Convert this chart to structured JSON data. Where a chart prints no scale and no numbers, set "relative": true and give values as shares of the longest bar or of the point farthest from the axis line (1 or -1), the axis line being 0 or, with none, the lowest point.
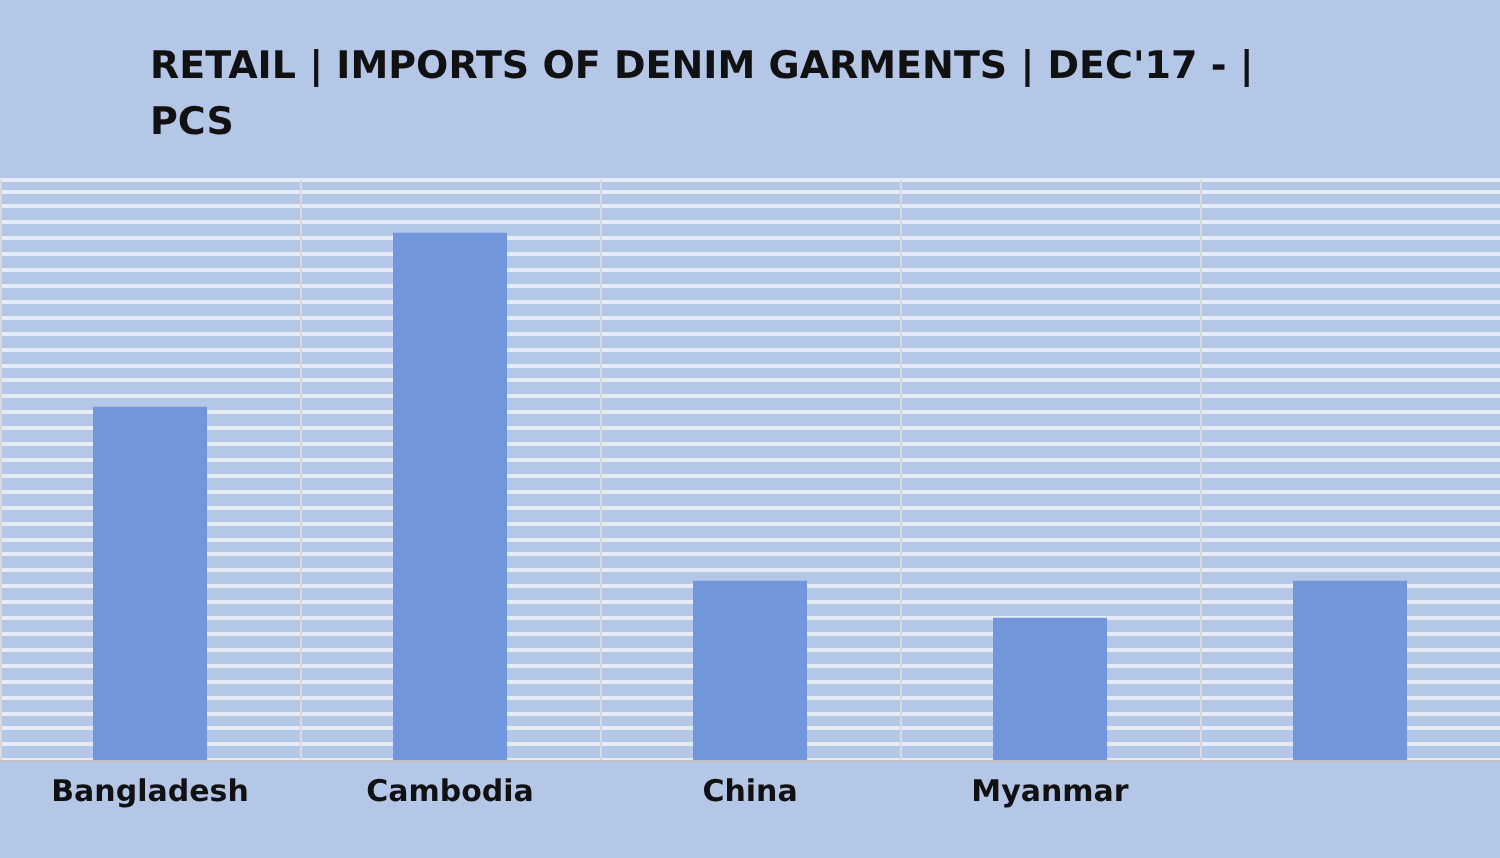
{
  "chart_data": {
    "type": "bar",
    "title": "RETAIL | IMPORTS OF DENIM GARMENTS | DEC'17 - | PCS",
    "categories": [
      "Bangladesh",
      "Cambodia",
      "China",
      "Myanmar",
      null
    ],
    "values": [
      0.67,
      1,
      0.34,
      0.27,
      0.34
    ],
    "color": "#7196dc",
    "relative": true,
    "grid": true
  }
}
